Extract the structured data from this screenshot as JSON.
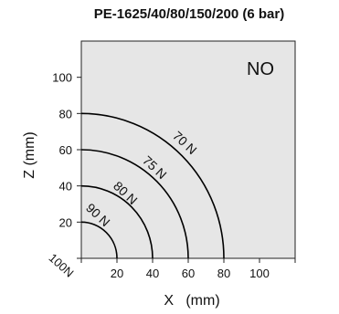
{
  "chart_data": {
    "type": "line",
    "title": "PE-1625/40/80/150/200 (6 bar)",
    "badge": "NO",
    "xlabel": "X   (mm)",
    "ylabel": "Z (mm)",
    "xlim": [
      0,
      120
    ],
    "ylim": [
      0,
      120
    ],
    "x_ticks": [
      "20",
      "40",
      "60",
      "80",
      "100"
    ],
    "y_ticks": [
      "20",
      "40",
      "60",
      "80",
      "100"
    ],
    "corner_tick": "100",
    "corner_tick_unit": "N",
    "grid": false,
    "colors": {
      "plot_bg": "#e6e6e6",
      "line": "#000000"
    },
    "series": [
      {
        "name": "90 N",
        "radius": 20
      },
      {
        "name": "80 N",
        "radius": 40
      },
      {
        "name": "75 N",
        "radius": 60
      },
      {
        "name": "70 N",
        "radius": 80
      }
    ]
  }
}
